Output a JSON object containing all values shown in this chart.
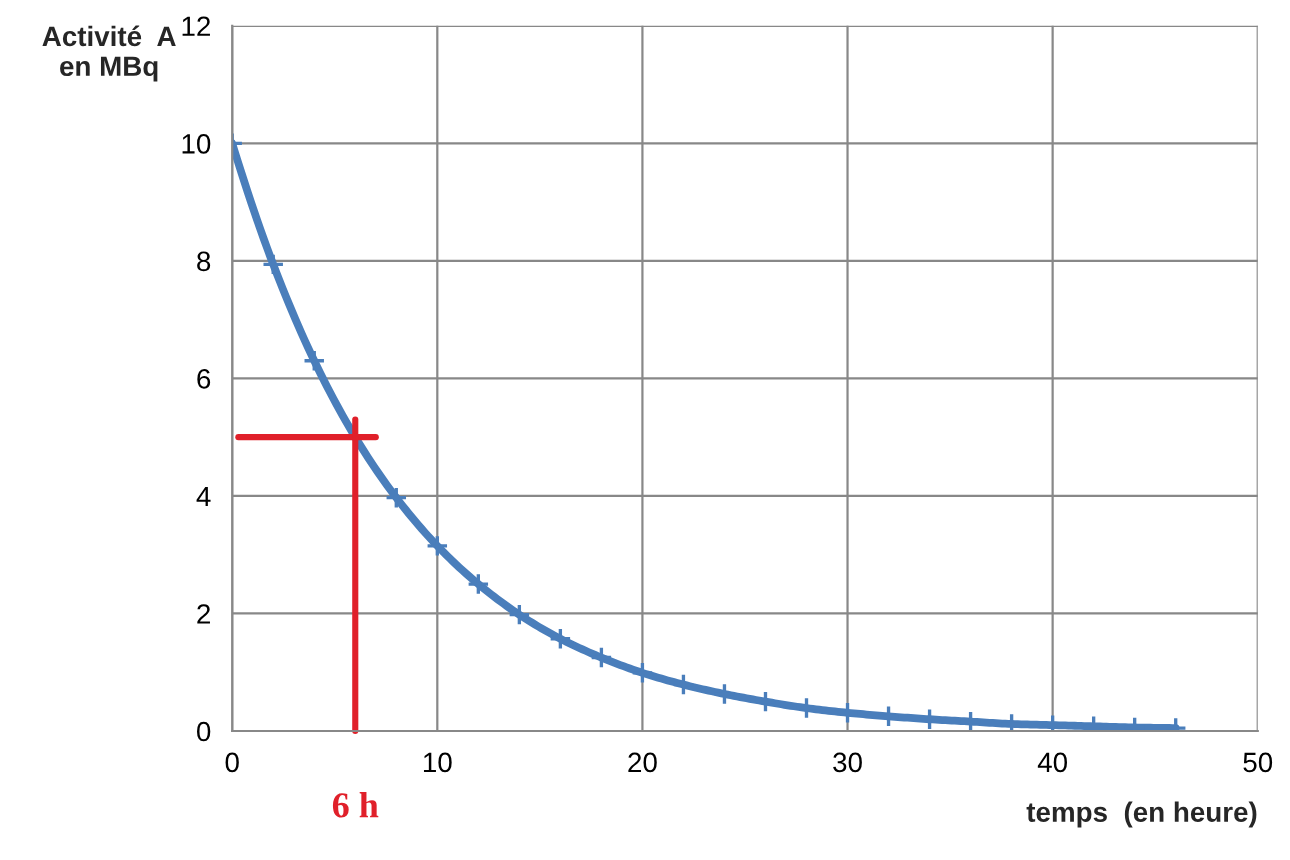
{
  "chart_data": {
    "type": "line",
    "xlabel": "temps  (en heure)",
    "ylabel": "Activité  A\nen MBq",
    "xlim": [
      0,
      50
    ],
    "xticks": [
      0,
      10,
      20,
      30,
      40,
      50
    ],
    "ylim": [
      0,
      12
    ],
    "yticks": [
      0,
      2,
      4,
      6,
      8,
      10,
      12
    ],
    "grid": true,
    "series": [
      {
        "color": "#4a7ebb",
        "marker": "cross",
        "x": [
          0,
          2,
          4,
          6,
          8,
          10,
          12,
          14,
          16,
          18,
          20,
          22,
          24,
          26,
          28,
          30,
          32,
          34,
          36,
          38,
          40,
          42,
          44,
          46
        ],
        "values": [
          10,
          7.94,
          6.3,
          5.0,
          3.97,
          3.15,
          2.5,
          1.98,
          1.57,
          1.25,
          0.99,
          0.79,
          0.63,
          0.5,
          0.39,
          0.31,
          0.25,
          0.2,
          0.16,
          0.12,
          0.1,
          0.08,
          0.06,
          0.05
        ]
      },
      {
        "color": "#e0202a",
        "marker": "none",
        "x": [
          0.3,
          7
        ],
        "values": [
          5,
          5
        ]
      },
      {
        "color": "#e0202a",
        "marker": "none",
        "x": [
          6,
          6
        ],
        "values": [
          5.3,
          0
        ]
      }
    ],
    "annotations": [
      {
        "text": "6 h",
        "x": 6,
        "y": 0
      }
    ]
  }
}
